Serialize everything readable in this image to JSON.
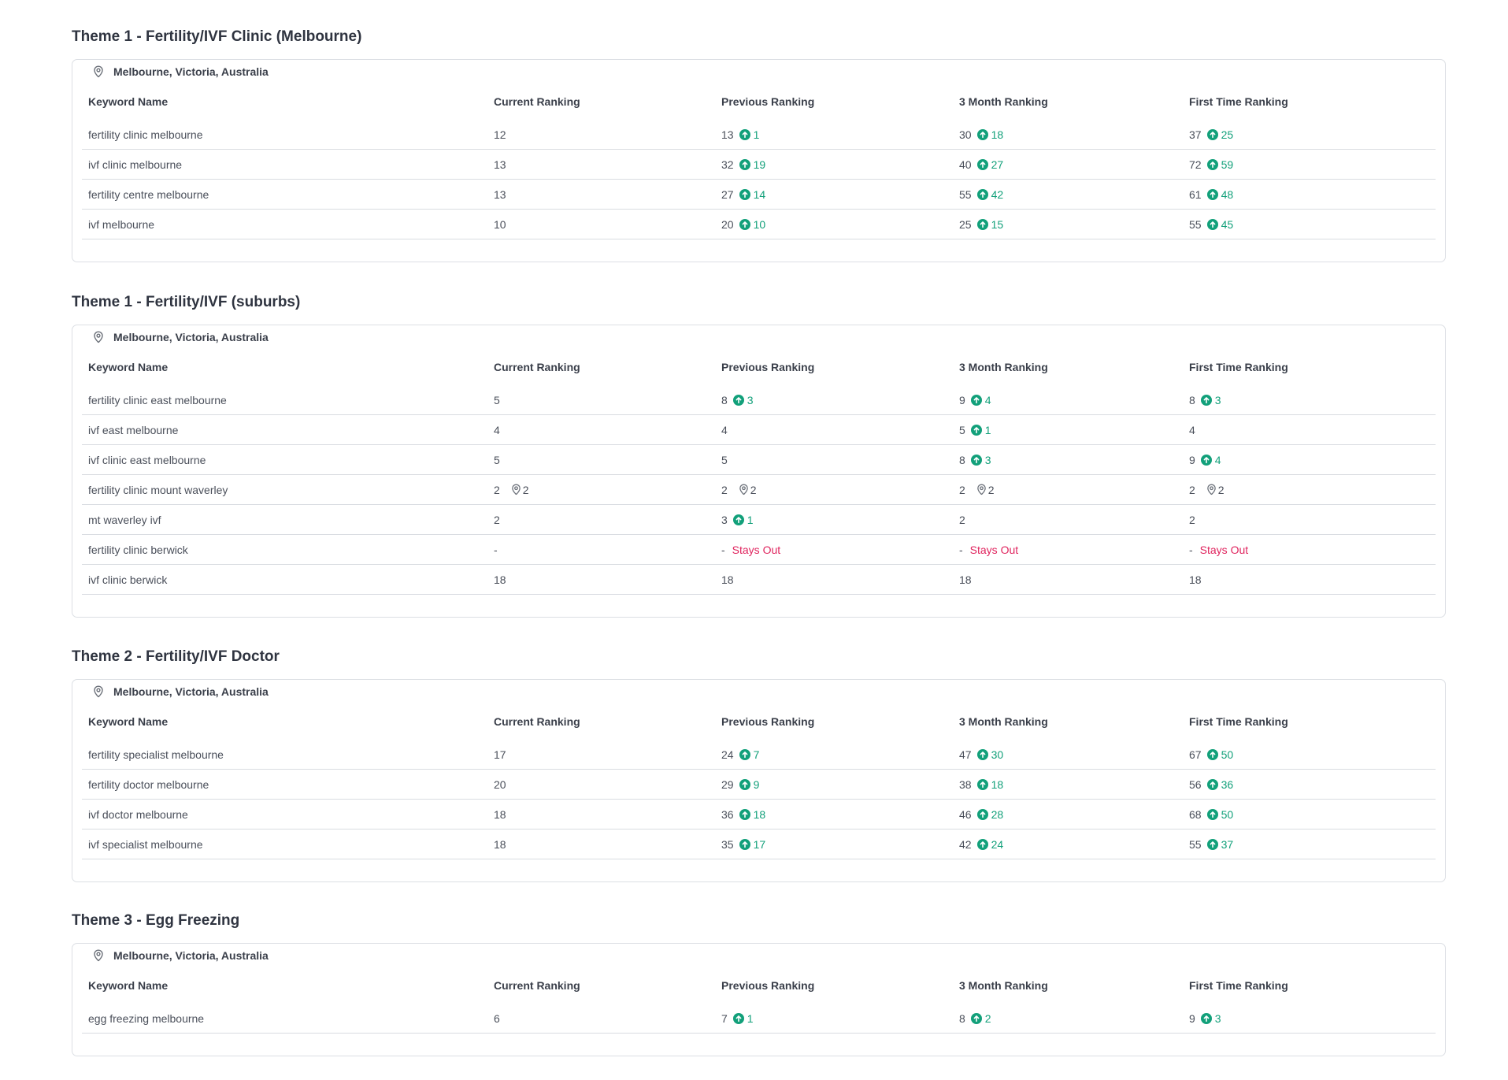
{
  "columns": [
    "Keyword Name",
    "Current Ranking",
    "Previous Ranking",
    "3 Month Ranking",
    "First Time Ranking"
  ],
  "icons": {
    "location": "map-pin-icon",
    "improved": "arrow-up-circle-icon",
    "local_pack": "map-pin-icon"
  },
  "colors": {
    "improved": "#12a07a",
    "stays_out": "#e0245e"
  },
  "themes": [
    {
      "title": "Theme 1 - Fertility/IVF Clinic (Melbourne)",
      "location": "Melbourne, Victoria, Australia",
      "rows": [
        {
          "keyword": "fertility clinic melbourne",
          "current": {
            "value": "12"
          },
          "previous": {
            "value": "13",
            "up": "1"
          },
          "three_month": {
            "value": "30",
            "up": "18"
          },
          "first_time": {
            "value": "37",
            "up": "25"
          }
        },
        {
          "keyword": "ivf clinic melbourne",
          "current": {
            "value": "13"
          },
          "previous": {
            "value": "32",
            "up": "19"
          },
          "three_month": {
            "value": "40",
            "up": "27"
          },
          "first_time": {
            "value": "72",
            "up": "59"
          }
        },
        {
          "keyword": "fertility centre melbourne",
          "current": {
            "value": "13"
          },
          "previous": {
            "value": "27",
            "up": "14"
          },
          "three_month": {
            "value": "55",
            "up": "42"
          },
          "first_time": {
            "value": "61",
            "up": "48"
          }
        },
        {
          "keyword": "ivf melbourne",
          "current": {
            "value": "10"
          },
          "previous": {
            "value": "20",
            "up": "10"
          },
          "three_month": {
            "value": "25",
            "up": "15"
          },
          "first_time": {
            "value": "55",
            "up": "45"
          }
        }
      ]
    },
    {
      "title": "Theme 1 - Fertility/IVF (suburbs)",
      "location": "Melbourne, Victoria, Australia",
      "rows": [
        {
          "keyword": "fertility clinic east melbourne",
          "current": {
            "value": "5"
          },
          "previous": {
            "value": "8",
            "up": "3"
          },
          "three_month": {
            "value": "9",
            "up": "4"
          },
          "first_time": {
            "value": "8",
            "up": "3"
          }
        },
        {
          "keyword": "ivf east melbourne",
          "current": {
            "value": "4"
          },
          "previous": {
            "value": "4"
          },
          "three_month": {
            "value": "5",
            "up": "1"
          },
          "first_time": {
            "value": "4"
          }
        },
        {
          "keyword": "ivf clinic east melbourne",
          "current": {
            "value": "5"
          },
          "previous": {
            "value": "5"
          },
          "three_month": {
            "value": "8",
            "up": "3"
          },
          "first_time": {
            "value": "9",
            "up": "4"
          }
        },
        {
          "keyword": "fertility clinic mount waverley",
          "current": {
            "value": "2",
            "local": "2"
          },
          "previous": {
            "value": "2",
            "local": "2"
          },
          "three_month": {
            "value": "2",
            "local": "2"
          },
          "first_time": {
            "value": "2",
            "local": "2"
          }
        },
        {
          "keyword": "mt waverley ivf",
          "current": {
            "value": "2"
          },
          "previous": {
            "value": "3",
            "up": "1"
          },
          "three_month": {
            "value": "2"
          },
          "first_time": {
            "value": "2"
          }
        },
        {
          "keyword": "fertility clinic berwick",
          "current": {
            "value": "-"
          },
          "previous": {
            "value": "-",
            "status": "Stays Out"
          },
          "three_month": {
            "value": "-",
            "status": "Stays Out"
          },
          "first_time": {
            "value": "-",
            "status": "Stays Out"
          }
        },
        {
          "keyword": "ivf clinic berwick",
          "current": {
            "value": "18"
          },
          "previous": {
            "value": "18"
          },
          "three_month": {
            "value": "18"
          },
          "first_time": {
            "value": "18"
          }
        }
      ]
    },
    {
      "title": "Theme 2 - Fertility/IVF Doctor",
      "location": "Melbourne, Victoria, Australia",
      "rows": [
        {
          "keyword": "fertility specialist melbourne",
          "current": {
            "value": "17"
          },
          "previous": {
            "value": "24",
            "up": "7"
          },
          "three_month": {
            "value": "47",
            "up": "30"
          },
          "first_time": {
            "value": "67",
            "up": "50"
          }
        },
        {
          "keyword": "fertility doctor melbourne",
          "current": {
            "value": "20"
          },
          "previous": {
            "value": "29",
            "up": "9"
          },
          "three_month": {
            "value": "38",
            "up": "18"
          },
          "first_time": {
            "value": "56",
            "up": "36"
          }
        },
        {
          "keyword": "ivf doctor melbourne",
          "current": {
            "value": "18"
          },
          "previous": {
            "value": "36",
            "up": "18"
          },
          "three_month": {
            "value": "46",
            "up": "28"
          },
          "first_time": {
            "value": "68",
            "up": "50"
          }
        },
        {
          "keyword": "ivf specialist melbourne",
          "current": {
            "value": "18"
          },
          "previous": {
            "value": "35",
            "up": "17"
          },
          "three_month": {
            "value": "42",
            "up": "24"
          },
          "first_time": {
            "value": "55",
            "up": "37"
          }
        }
      ]
    },
    {
      "title": "Theme 3 - Egg Freezing",
      "location": "Melbourne, Victoria, Australia",
      "rows": [
        {
          "keyword": "egg freezing melbourne",
          "current": {
            "value": "6"
          },
          "previous": {
            "value": "7",
            "up": "1"
          },
          "three_month": {
            "value": "8",
            "up": "2"
          },
          "first_time": {
            "value": "9",
            "up": "3"
          }
        }
      ]
    }
  ]
}
